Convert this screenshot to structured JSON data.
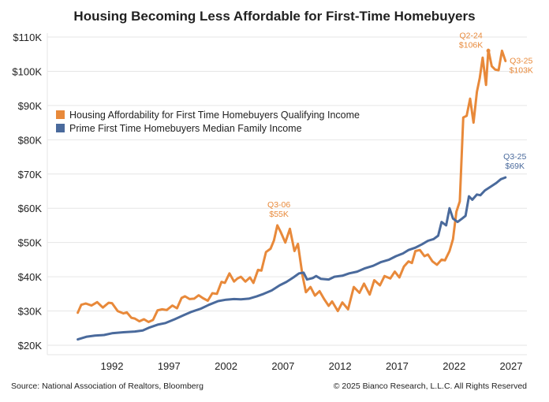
{
  "chart_data": {
    "type": "line",
    "title": "Housing Becoming Less Affordable for First-Time Homebuyers",
    "xlabel": "",
    "ylabel": "",
    "xlim": [
      1988,
      2027.5
    ],
    "ylim": [
      20,
      110
    ],
    "x_ticks": [
      1992,
      1997,
      2002,
      2007,
      2012,
      2017,
      2022,
      2027
    ],
    "x_tick_labels": [
      "1992",
      "1997",
      "2002",
      "2007",
      "2012",
      "2017",
      "2022",
      "2027"
    ],
    "y_ticks": [
      20,
      30,
      40,
      50,
      60,
      70,
      80,
      90,
      100,
      110
    ],
    "y_tick_labels": [
      "$20K",
      "$30K",
      "$40K",
      "$50K",
      "$60K",
      "$70K",
      "$80K",
      "$90K",
      "$100K",
      "$110K"
    ],
    "grid": true,
    "legend_position": "left-upper",
    "series": [
      {
        "name": "Housing Affordability for First Time Homebuyers Qualifying Income",
        "color": "#E8893A",
        "points": [
          [
            1989.0,
            29.5
          ],
          [
            1989.3,
            31.8
          ],
          [
            1989.7,
            32.2
          ],
          [
            1990.2,
            31.6
          ],
          [
            1990.7,
            32.6
          ],
          [
            1991.2,
            31.0
          ],
          [
            1991.7,
            32.4
          ],
          [
            1992.0,
            32.3
          ],
          [
            1992.5,
            30.0
          ],
          [
            1993.0,
            29.3
          ],
          [
            1993.3,
            29.6
          ],
          [
            1993.7,
            28.0
          ],
          [
            1994.0,
            27.8
          ],
          [
            1994.4,
            27.0
          ],
          [
            1994.8,
            27.6
          ],
          [
            1995.2,
            26.8
          ],
          [
            1995.6,
            27.4
          ],
          [
            1996.0,
            30.2
          ],
          [
            1996.4,
            30.5
          ],
          [
            1996.8,
            30.3
          ],
          [
            1997.3,
            31.6
          ],
          [
            1997.7,
            30.8
          ],
          [
            1998.1,
            33.8
          ],
          [
            1998.4,
            34.3
          ],
          [
            1998.8,
            33.5
          ],
          [
            1999.2,
            33.6
          ],
          [
            1999.6,
            34.6
          ],
          [
            2000.0,
            33.7
          ],
          [
            2000.4,
            33.0
          ],
          [
            2000.8,
            35.2
          ],
          [
            2001.2,
            35.0
          ],
          [
            2001.6,
            38.5
          ],
          [
            2001.9,
            38.2
          ],
          [
            2002.3,
            41.0
          ],
          [
            2002.7,
            38.6
          ],
          [
            2003.0,
            39.5
          ],
          [
            2003.3,
            40.0
          ],
          [
            2003.7,
            38.6
          ],
          [
            2004.1,
            39.8
          ],
          [
            2004.4,
            38.2
          ],
          [
            2004.8,
            42.0
          ],
          [
            2005.1,
            41.8
          ],
          [
            2005.5,
            47.2
          ],
          [
            2005.9,
            48.2
          ],
          [
            2006.2,
            50.6
          ],
          [
            2006.5,
            55.0
          ],
          [
            2006.8,
            53.0
          ],
          [
            2007.2,
            50.0
          ],
          [
            2007.6,
            54.0
          ],
          [
            2008.0,
            47.5
          ],
          [
            2008.3,
            49.6
          ],
          [
            2008.7,
            40.5
          ],
          [
            2009.0,
            35.5
          ],
          [
            2009.4,
            37.0
          ],
          [
            2009.8,
            34.5
          ],
          [
            2010.2,
            35.8
          ],
          [
            2010.6,
            33.5
          ],
          [
            2011.0,
            31.5
          ],
          [
            2011.3,
            32.8
          ],
          [
            2011.8,
            30.0
          ],
          [
            2012.2,
            32.5
          ],
          [
            2012.7,
            30.5
          ],
          [
            2013.2,
            37.0
          ],
          [
            2013.7,
            35.3
          ],
          [
            2014.1,
            38.0
          ],
          [
            2014.6,
            34.8
          ],
          [
            2015.0,
            39.0
          ],
          [
            2015.5,
            37.5
          ],
          [
            2015.9,
            40.2
          ],
          [
            2016.4,
            39.5
          ],
          [
            2016.8,
            41.5
          ],
          [
            2017.2,
            39.8
          ],
          [
            2017.6,
            43.0
          ],
          [
            2018.0,
            44.5
          ],
          [
            2018.3,
            44.0
          ],
          [
            2018.6,
            47.5
          ],
          [
            2019.0,
            47.8
          ],
          [
            2019.4,
            46.0
          ],
          [
            2019.7,
            46.5
          ],
          [
            2020.1,
            44.5
          ],
          [
            2020.5,
            43.5
          ],
          [
            2020.9,
            45.0
          ],
          [
            2021.2,
            44.8
          ],
          [
            2021.6,
            47.5
          ],
          [
            2021.9,
            51.0
          ],
          [
            2022.2,
            59.0
          ],
          [
            2022.5,
            62.0
          ],
          [
            2022.8,
            86.5
          ],
          [
            2023.1,
            87.0
          ],
          [
            2023.4,
            92.0
          ],
          [
            2023.7,
            85.0
          ],
          [
            2024.0,
            94.0
          ],
          [
            2024.25,
            98.0
          ],
          [
            2024.5,
            104.0
          ],
          [
            2024.8,
            96.0
          ],
          [
            2025.0,
            106.3
          ],
          [
            2025.3,
            101.5
          ],
          [
            2025.6,
            100.5
          ],
          [
            2025.9,
            100.3
          ],
          [
            2026.2,
            106.0
          ],
          [
            2026.5,
            103.0
          ]
        ],
        "annotations": [
          {
            "label_line1": "Q3-06",
            "label_line2": "$55K",
            "x": 2006.5,
            "y": 55
          },
          {
            "label_line1": "Q2-24",
            "label_line2": "$106K",
            "x": 2025.0,
            "y": 106
          },
          {
            "label_line1": "Q3-25",
            "label_line2": "$103K",
            "x": 2026.5,
            "y": 103
          }
        ]
      },
      {
        "name": "Prime First Time Homebuyers Median Family Income",
        "color": "#4A6A9C",
        "points": [
          [
            1989.0,
            21.7
          ],
          [
            1989.8,
            22.5
          ],
          [
            1990.5,
            22.8
          ],
          [
            1991.3,
            23.0
          ],
          [
            1992.0,
            23.5
          ],
          [
            1993.0,
            23.8
          ],
          [
            1994.0,
            24.0
          ],
          [
            1994.7,
            24.3
          ],
          [
            1995.3,
            25.2
          ],
          [
            1996.0,
            26.0
          ],
          [
            1996.7,
            26.5
          ],
          [
            1997.5,
            27.6
          ],
          [
            1998.3,
            28.8
          ],
          [
            1999.0,
            29.8
          ],
          [
            1999.8,
            30.7
          ],
          [
            2000.5,
            31.8
          ],
          [
            2001.3,
            32.9
          ],
          [
            2002.0,
            33.3
          ],
          [
            2002.7,
            33.5
          ],
          [
            2003.3,
            33.4
          ],
          [
            2004.0,
            33.6
          ],
          [
            2004.7,
            34.3
          ],
          [
            2005.3,
            35.0
          ],
          [
            2006.0,
            36.0
          ],
          [
            2006.7,
            37.5
          ],
          [
            2007.3,
            38.5
          ],
          [
            2007.9,
            39.8
          ],
          [
            2008.4,
            41.0
          ],
          [
            2008.8,
            41.2
          ],
          [
            2009.1,
            39.2
          ],
          [
            2009.6,
            39.6
          ],
          [
            2009.9,
            40.2
          ],
          [
            2010.3,
            39.4
          ],
          [
            2011.0,
            39.2
          ],
          [
            2011.5,
            40.0
          ],
          [
            2012.2,
            40.3
          ],
          [
            2012.8,
            41.0
          ],
          [
            2013.5,
            41.5
          ],
          [
            2014.2,
            42.5
          ],
          [
            2014.9,
            43.2
          ],
          [
            2015.6,
            44.3
          ],
          [
            2016.3,
            45.0
          ],
          [
            2016.9,
            46.0
          ],
          [
            2017.5,
            46.8
          ],
          [
            2018.0,
            47.8
          ],
          [
            2018.6,
            48.5
          ],
          [
            2019.2,
            49.5
          ],
          [
            2019.7,
            50.5
          ],
          [
            2020.2,
            51.0
          ],
          [
            2020.6,
            52.0
          ],
          [
            2020.9,
            56.0
          ],
          [
            2021.3,
            55.0
          ],
          [
            2021.6,
            60.0
          ],
          [
            2021.9,
            57.0
          ],
          [
            2022.3,
            56.0
          ],
          [
            2022.7,
            57.0
          ],
          [
            2023.0,
            57.8
          ],
          [
            2023.3,
            63.5
          ],
          [
            2023.6,
            62.5
          ],
          [
            2024.0,
            64.0
          ],
          [
            2024.3,
            63.8
          ],
          [
            2024.7,
            65.2
          ],
          [
            2025.2,
            66.3
          ],
          [
            2025.7,
            67.4
          ],
          [
            2026.1,
            68.5
          ],
          [
            2026.5,
            69.0
          ]
        ],
        "annotations": [
          {
            "label_line1": "Q3-25",
            "label_line2": "$69K",
            "x": 2026.5,
            "y": 69
          }
        ]
      }
    ],
    "source": "Source: National Association of Realtors, Bloomberg",
    "copyright": "© 2025 Bianco Research, L.L.C. All Rights Reserved"
  }
}
